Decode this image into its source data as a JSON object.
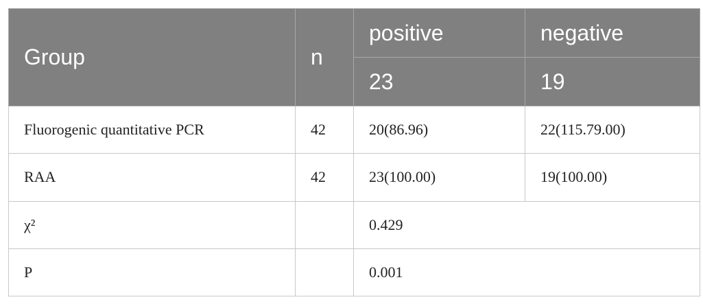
{
  "table": {
    "header": {
      "group": "Group",
      "n": "n",
      "positive": "positive",
      "negative": "negative",
      "positive_count": "23",
      "negative_count": "19"
    },
    "rows": [
      [
        "Fluorogenic quantitative PCR",
        "42",
        "20(86.96)",
        "22(115.79.00)"
      ],
      [
        "RAA",
        "42",
        "23(100.00)",
        "19(100.00)"
      ]
    ],
    "statistics": [
      {
        "label": "χ²",
        "value": "0.429"
      },
      {
        "label": "P",
        "value": "0.001"
      }
    ]
  }
}
